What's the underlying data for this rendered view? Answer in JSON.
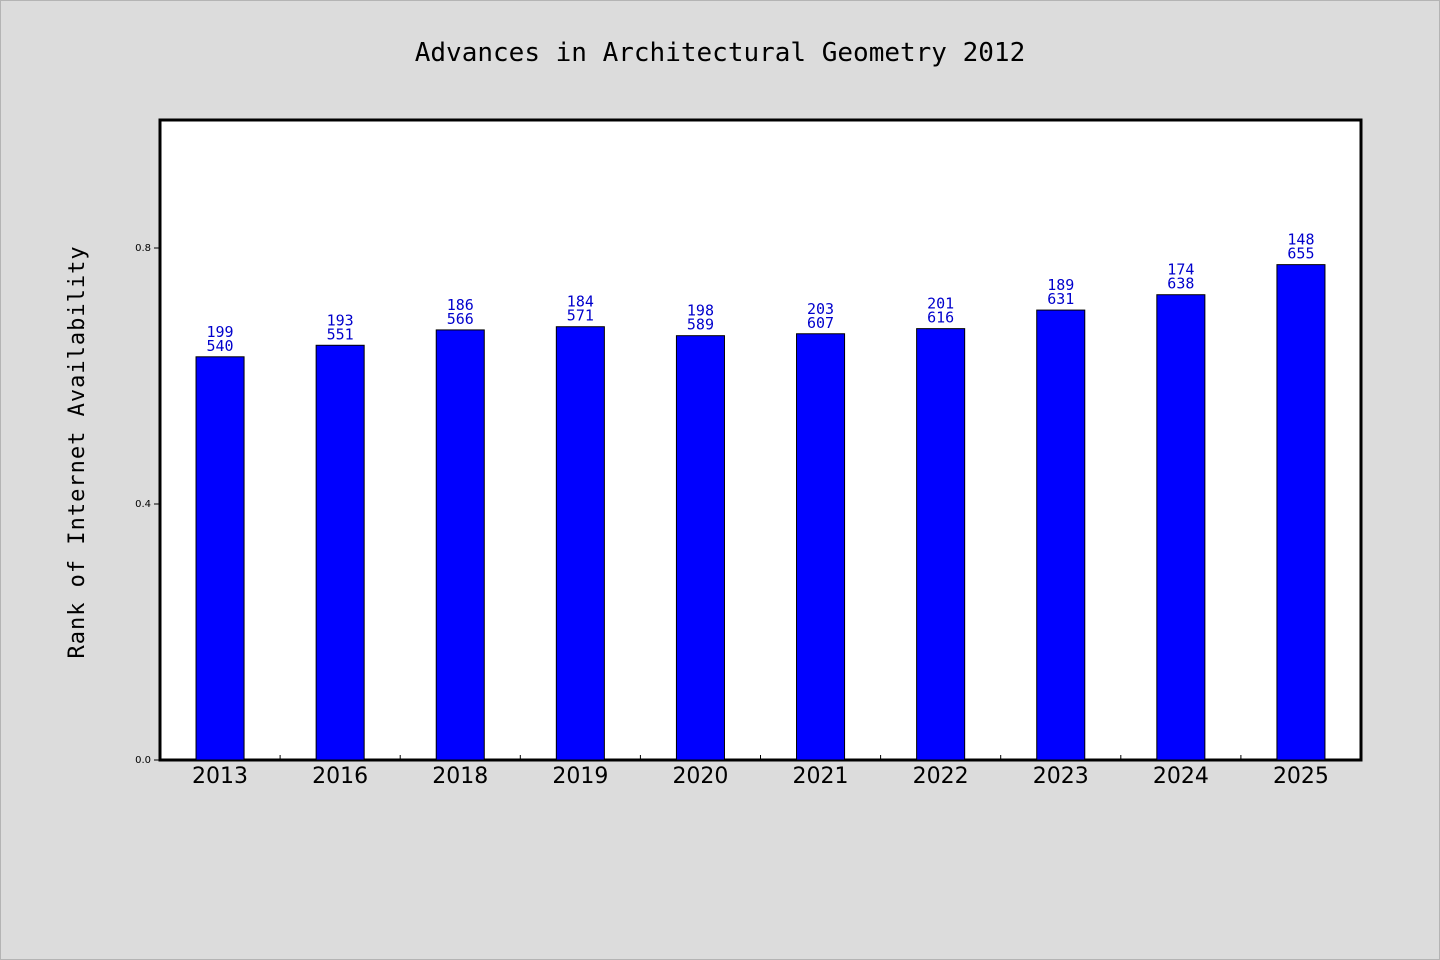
{
  "chart_data": {
    "type": "bar",
    "title": "Advances in Architectural Geometry 2012",
    "ylabel": "Rank of Internet Availability",
    "categories": [
      "2013",
      "2016",
      "2018",
      "2019",
      "2020",
      "2021",
      "2022",
      "2023",
      "2024",
      "2025"
    ],
    "values": [
      0.63,
      0.648,
      0.672,
      0.677,
      0.663,
      0.666,
      0.674,
      0.703,
      0.727,
      0.774
    ],
    "labels_top": [
      "199",
      "193",
      "186",
      "184",
      "198",
      "203",
      "201",
      "189",
      "174",
      "148"
    ],
    "labels_bottom": [
      "540",
      "551",
      "566",
      "571",
      "589",
      "607",
      "616",
      "631",
      "638",
      "655"
    ],
    "ylim": [
      0,
      1.0
    ],
    "yticks": [
      0.0,
      0.4,
      0.8
    ],
    "ytick_labels": [
      "0.0",
      "0.4",
      "0.8"
    ],
    "grid": false,
    "colors": {
      "bar": "#0000ff",
      "bar_edge": "#000000",
      "label": "#0000cc",
      "background": "#dcdcdc",
      "plot_background": "#ffffff"
    }
  }
}
